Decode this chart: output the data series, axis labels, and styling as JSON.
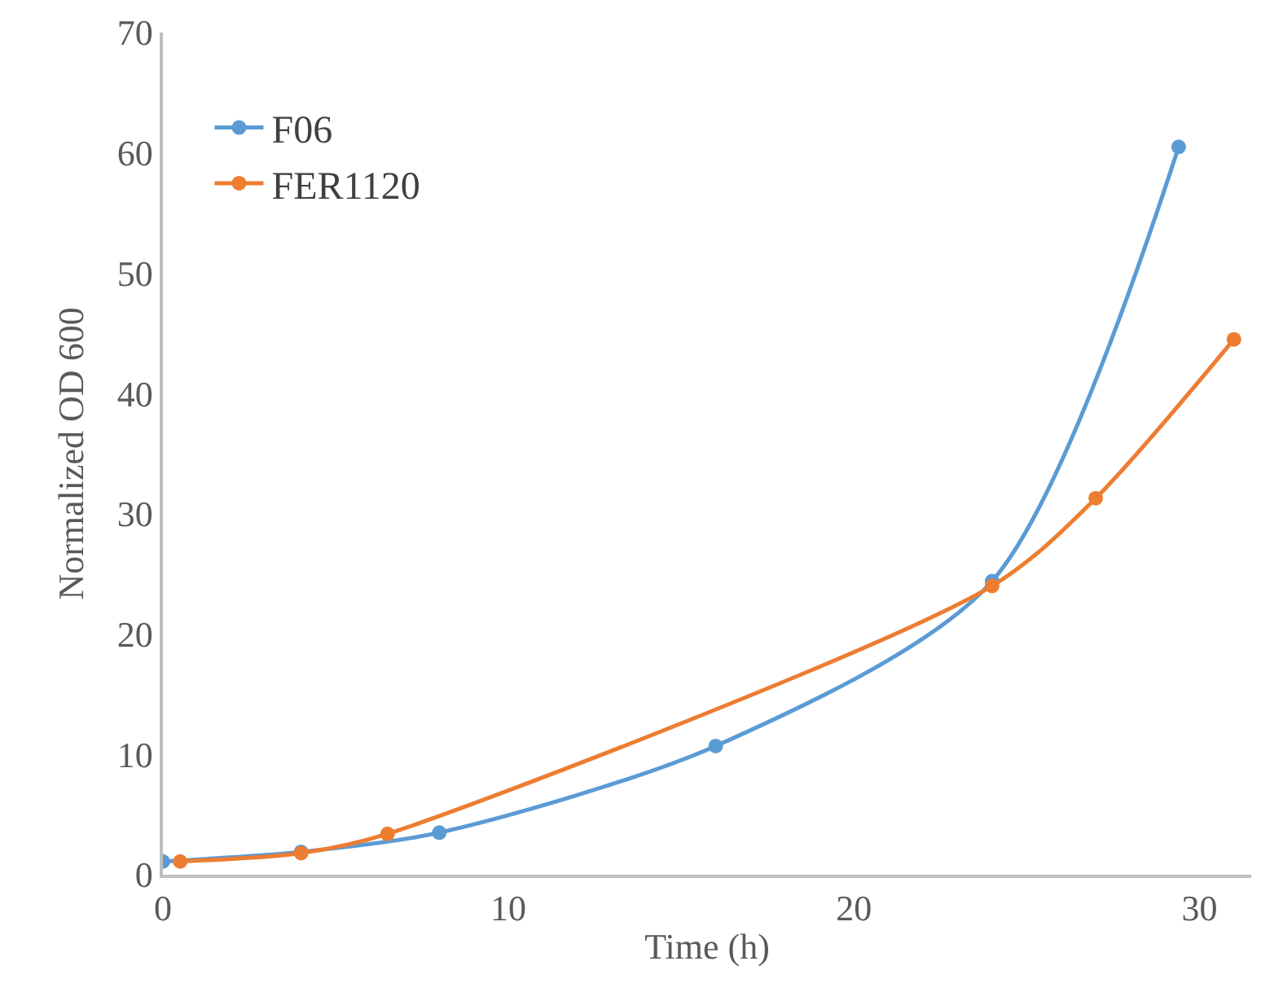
{
  "chart_data": {
    "type": "line",
    "xlabel": "Time (h)",
    "ylabel": "Normalized OD 600",
    "xlim": [
      0,
      31.5
    ],
    "xticks": [
      0,
      10,
      20,
      30
    ],
    "ylim": [
      0,
      70
    ],
    "yticks": [
      0,
      10,
      20,
      30,
      40,
      50,
      60,
      70
    ],
    "grid": false,
    "legend": "top left",
    "marker": "circle",
    "line_style": "solid",
    "series": [
      {
        "name": "F06",
        "color": "#5b9bd5",
        "x": [
          0,
          4,
          8,
          16,
          24,
          29.4
        ],
        "values": [
          1.1,
          1.9,
          3.5,
          10.7,
          24.4,
          60.5
        ]
      },
      {
        "name": "FER1120",
        "color": "#ed7d31",
        "x": [
          0.5,
          4,
          6.5,
          24,
          27,
          31
        ],
        "values": [
          1.1,
          1.8,
          3.4,
          24,
          31.3,
          44.5
        ]
      }
    ]
  }
}
